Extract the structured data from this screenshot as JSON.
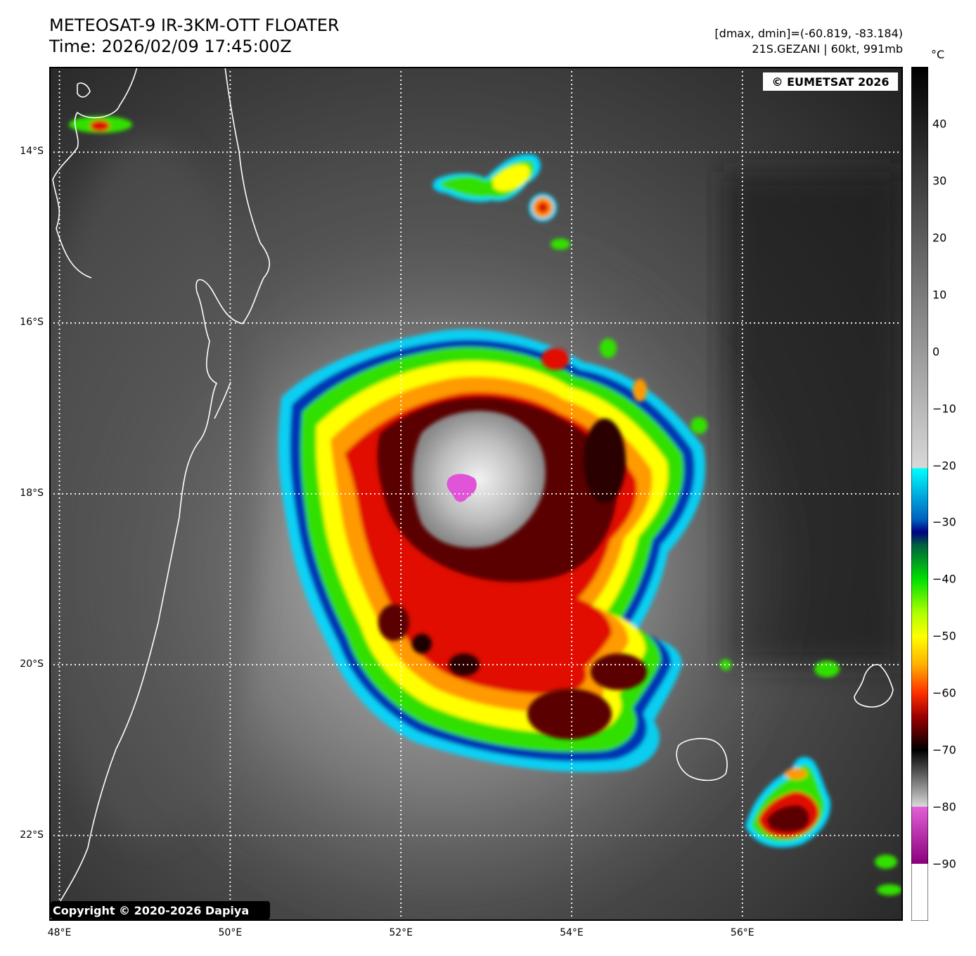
{
  "header": {
    "title_line1": "METEOSAT-9 IR-3KM-OTT FLOATER",
    "title_line2": "Time: 2026/02/09 17:45:00Z",
    "info_line1": "[dmax, dmin]=(-60.819, -83.184)",
    "info_line2": "21S.GEZANI | 60kt, 991mb"
  },
  "map": {
    "eumetsat_label": "© EUMETSAT 2026",
    "copyright_label": "Copyright © 2020-2026 Dapiya",
    "lat_labels": [
      "14°S",
      "16°S",
      "18°S",
      "20°S",
      "22°S"
    ],
    "lon_labels": [
      "48°E",
      "50°E",
      "52°E",
      "54°E",
      "56°E"
    ],
    "lat_values": [
      -14,
      -16,
      -18,
      -20,
      -22
    ],
    "lon_values": [
      48,
      50,
      52,
      54,
      56
    ],
    "extent": {
      "lon_min": 47.88,
      "lon_max": 57.88,
      "lat_max": -13.0,
      "lat_min": -23.0
    }
  },
  "colorbar": {
    "unit": "°C",
    "ticks": [
      "40",
      "30",
      "20",
      "10",
      "0",
      "−10",
      "−20",
      "−30",
      "−40",
      "−50",
      "−60",
      "−70",
      "−80",
      "−90"
    ],
    "tick_values": [
      40,
      30,
      20,
      10,
      0,
      -10,
      -20,
      -30,
      -40,
      -50,
      -60,
      -70,
      -80,
      -90
    ],
    "range": [
      -100,
      50
    ]
  },
  "colors": {
    "cold_magenta": "#e055d8",
    "white": "#ffffff",
    "dark_red": "#5a0000",
    "red": "#e01000",
    "orange": "#ff9a00",
    "yellow": "#ffff00",
    "green": "#33e000",
    "cyan": "#00e8ff",
    "blue": "#0030b0",
    "navy": "#000060",
    "grid": "#ffffff"
  }
}
